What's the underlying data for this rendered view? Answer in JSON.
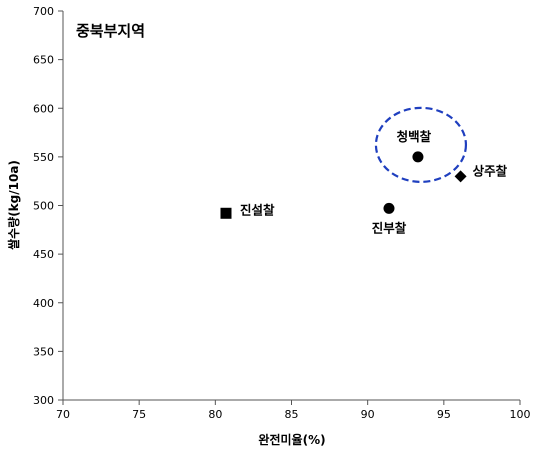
{
  "chart_data": {
    "type": "scatter",
    "title": "중북부지역",
    "xlabel": "완전미율(%)",
    "ylabel": "쌀수량(kg/10a)",
    "xlim": [
      70,
      100
    ],
    "ylim": [
      300,
      700
    ],
    "x_ticks": [
      "70",
      "75",
      "80",
      "85",
      "90",
      "95",
      "100"
    ],
    "y_ticks": [
      "300",
      "350",
      "400",
      "450",
      "500",
      "550",
      "600",
      "650",
      "700"
    ],
    "grid": false,
    "points": [
      {
        "label": "진설찰",
        "x": 80.7,
        "y": 492,
        "marker": "square"
      },
      {
        "label": "진부찰",
        "x": 91.4,
        "y": 497,
        "marker": "circle"
      },
      {
        "label": "청백찰",
        "x": 93.3,
        "y": 550,
        "marker": "circle",
        "highlighted": true
      },
      {
        "label": "상주찰",
        "x": 96.1,
        "y": 530,
        "marker": "diamond"
      }
    ],
    "highlight_color": "#1f3fbf"
  }
}
